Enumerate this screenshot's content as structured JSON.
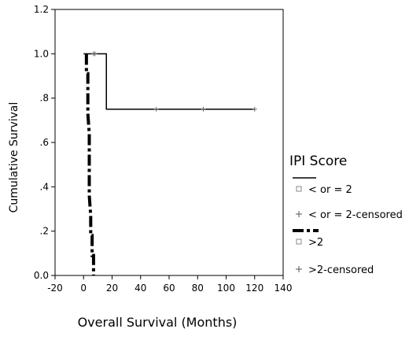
{
  "chart_data": {
    "type": "line",
    "xlabel": "Overall Survival (Months)",
    "ylabel": "Cumulative Survival",
    "xlim": [
      -20,
      140
    ],
    "ylim": [
      0,
      1.2
    ],
    "x_ticks": [
      -20,
      0,
      20,
      40,
      60,
      80,
      100,
      120,
      140
    ],
    "x_tick_labels": [
      "-20",
      "0",
      "20",
      "40",
      "60",
      "80",
      "100",
      "120",
      "140"
    ],
    "y_ticks": [
      0,
      0.2,
      0.4,
      0.6,
      0.8,
      1.0,
      1.2
    ],
    "y_tick_labels": [
      "0.0",
      ".2",
      ".4",
      ".6",
      ".8",
      "1.0",
      "1.2"
    ],
    "legend": {
      "title": "IPI Score",
      "placement": "right",
      "entries": [
        "< or = 2",
        "< or = 2-censored",
        ">2",
        ">2-censored"
      ]
    },
    "series": [
      {
        "name": "< or = 2",
        "style": "solid",
        "color": "#000000",
        "steps": [
          [
            0,
            1.0
          ],
          [
            16,
            1.0
          ],
          [
            16,
            0.75
          ],
          [
            120,
            0.75
          ]
        ],
        "censored": [
          [
            7,
            1.0
          ],
          [
            8,
            1.0
          ],
          [
            51,
            0.75
          ],
          [
            84,
            0.75
          ],
          [
            120,
            0.75
          ]
        ]
      },
      {
        "name": ">2",
        "style": "dash-dot-thick",
        "color": "#000000",
        "steps": [
          [
            2,
            1.0
          ],
          [
            2,
            0.91
          ],
          [
            3,
            0.91
          ],
          [
            3,
            0.82
          ],
          [
            3,
            0.73
          ],
          [
            4,
            0.64
          ],
          [
            4,
            0.55
          ],
          [
            4,
            0.45
          ],
          [
            4,
            0.36
          ],
          [
            5,
            0.27
          ],
          [
            5,
            0.18
          ],
          [
            6,
            0.18
          ],
          [
            6,
            0.09
          ],
          [
            7,
            0.09
          ],
          [
            7,
            0.0
          ]
        ],
        "censored": []
      }
    ]
  }
}
